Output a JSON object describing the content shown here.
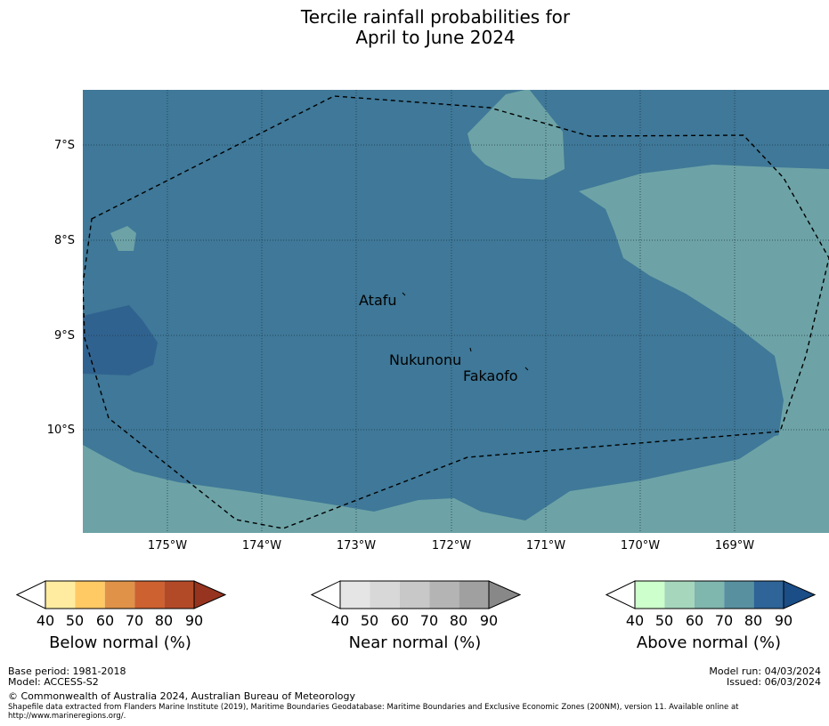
{
  "title_line1": "Tercile rainfall probabilities for",
  "title_line2": "April to June 2024",
  "lat_labels": [
    "7°S",
    "8°S",
    "9°S",
    "10°S"
  ],
  "lon_labels": [
    "175°W",
    "174°W",
    "173°W",
    "172°W",
    "171°W",
    "170°W",
    "169°W"
  ],
  "places": {
    "atafu": "Atafu",
    "nukunonu": "Nukunonu",
    "fakaofo": "Fakaofo"
  },
  "colorbars": {
    "below": {
      "title": "Below normal (%)",
      "ticks": [
        "40",
        "50",
        "60",
        "70",
        "80",
        "90"
      ],
      "colors": [
        "#ffffff",
        "#ffeca0",
        "#ffc964",
        "#e09248",
        "#cd6130",
        "#b24a28",
        "#963420"
      ]
    },
    "near": {
      "title": "Near normal (%)",
      "ticks": [
        "40",
        "50",
        "60",
        "70",
        "80",
        "90"
      ],
      "colors": [
        "#ffffff",
        "#e5e5e5",
        "#d8d8d8",
        "#c8c8c8",
        "#b4b4b4",
        "#a0a0a0",
        "#888888"
      ]
    },
    "above": {
      "title": "Above normal (%)",
      "ticks": [
        "40",
        "50",
        "60",
        "70",
        "80",
        "90"
      ],
      "colors": [
        "#ffffff",
        "#ccffcc",
        "#a6d7bc",
        "#7fb6ad",
        "#5890a0",
        "#2e6497",
        "#1b4d87"
      ]
    }
  },
  "footer": {
    "base_period": "Base period: 1981-2018",
    "model": "Model: ACCESS-S2",
    "model_run": "Model run: 04/03/2024",
    "issued": "Issued: 06/03/2024",
    "copyright": "© Commonwealth of Australia 2024, Australian Bureau of Meteorology",
    "shapefile": "Shapefile data extracted from Flanders Marine Institute (2019), Maritime Boundaries Geodatabase: Maritime Boundaries and Exclusive Economic Zones (200NM), version 11. Available online at http://www.marineregions.org/."
  },
  "map_colors": {
    "above_70": "#6da3a6",
    "above_80": "#3f7898",
    "above_90": "#30628f"
  }
}
